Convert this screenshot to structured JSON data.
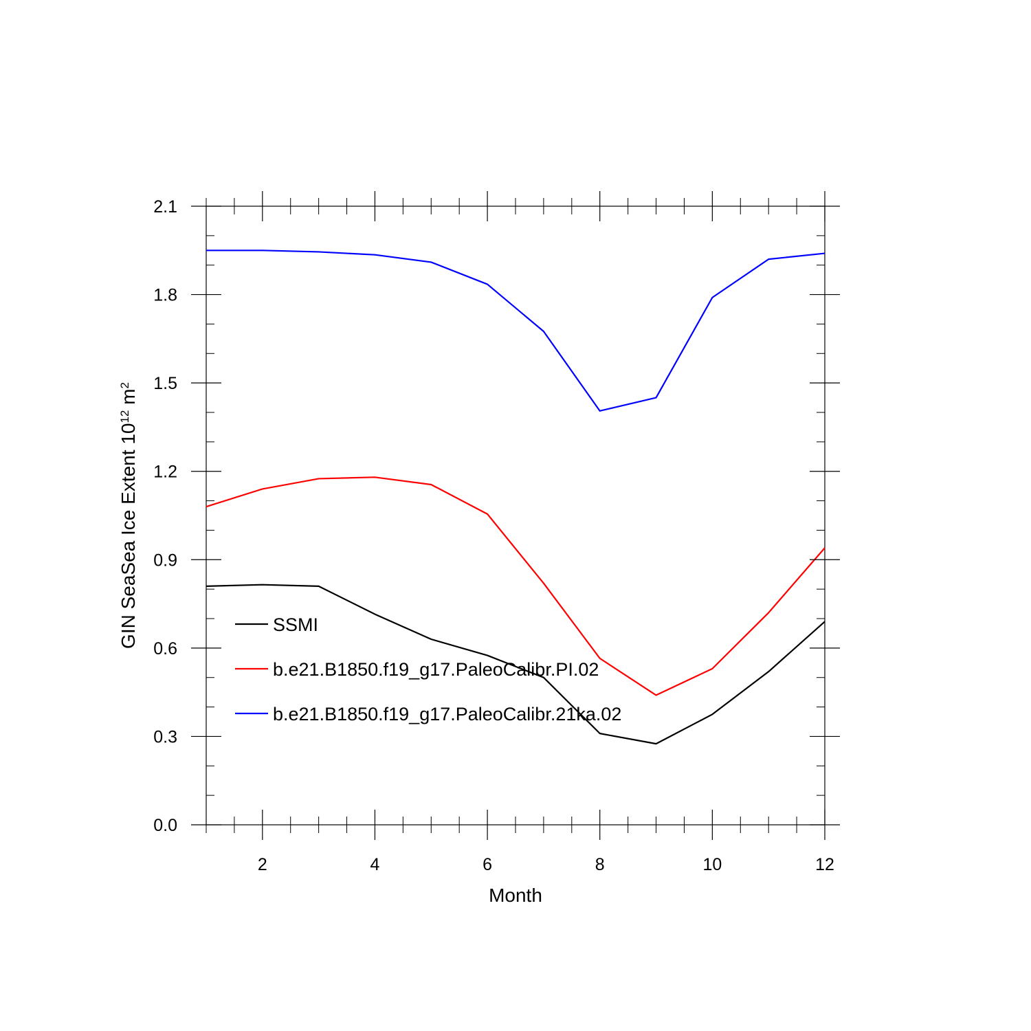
{
  "chart_data": {
    "type": "line",
    "xlabel": "Month",
    "ylabel": {
      "text": "GIN SeaSea Ice Extent 10",
      "superscript": "12",
      "unit": " m",
      "unit_superscript": "2"
    },
    "xlim": [
      1,
      12
    ],
    "ylim": [
      0.0,
      2.1
    ],
    "x_ticks": [
      2,
      4,
      6,
      8,
      10,
      12
    ],
    "x_tick_labels": [
      "2",
      "4",
      "6",
      "8",
      "10",
      "12"
    ],
    "y_ticks": [
      0.0,
      0.3,
      0.6,
      0.9,
      1.2,
      1.5,
      1.8,
      2.1
    ],
    "y_tick_labels": [
      "0.0",
      "0.3",
      "0.6",
      "0.9",
      "1.2",
      "1.5",
      "1.8",
      "2.1"
    ],
    "grid": false,
    "legend_position": "lower-left inside",
    "x": [
      1,
      2,
      3,
      4,
      5,
      6,
      7,
      8,
      9,
      10,
      11,
      12
    ],
    "series": [
      {
        "name": "SSMI",
        "color": "#000000",
        "values": [
          0.81,
          0.815,
          0.81,
          0.715,
          0.63,
          0.575,
          0.5,
          0.31,
          0.275,
          0.375,
          0.52,
          0.69
        ]
      },
      {
        "name": "b.e21.B1850.f19_g17.PaleoCalibr.PI.02",
        "color": "#ff0000",
        "values": [
          1.08,
          1.14,
          1.175,
          1.18,
          1.155,
          1.055,
          0.82,
          0.565,
          0.44,
          0.53,
          0.72,
          0.94
        ]
      },
      {
        "name": "b.e21.B1850.f19_g17.PaleoCalibr.21ka.02",
        "color": "#0000ff",
        "values": [
          1.95,
          1.95,
          1.945,
          1.935,
          1.91,
          1.835,
          1.675,
          1.405,
          1.45,
          1.79,
          1.92,
          1.94
        ]
      }
    ]
  }
}
